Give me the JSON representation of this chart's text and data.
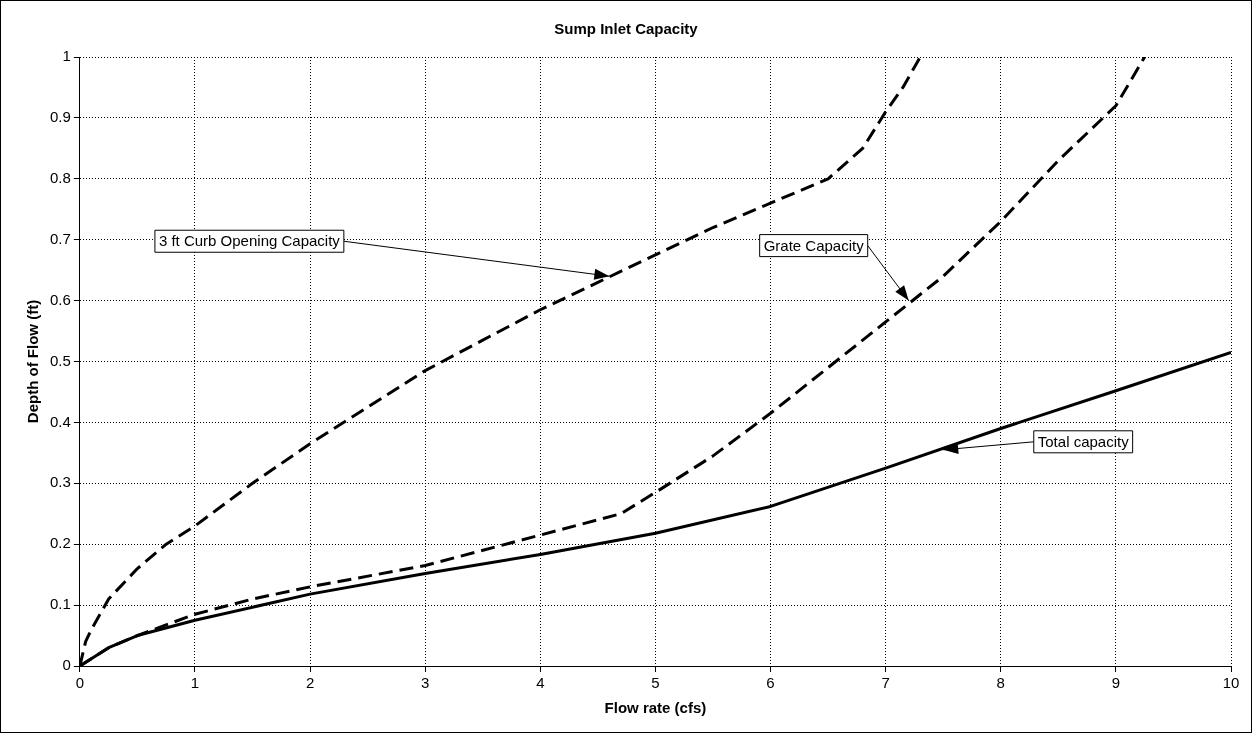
{
  "chart_data": {
    "type": "line",
    "title": "Sump Inlet Capacity",
    "xlabel": "Flow rate (cfs)",
    "ylabel": "Depth of Flow (ft)",
    "xlim": [
      0,
      10
    ],
    "xticks": [
      0,
      1,
      2,
      3,
      4,
      5,
      6,
      7,
      8,
      9,
      10
    ],
    "ylim": [
      0,
      1
    ],
    "yticks": [
      0,
      0.1,
      0.2,
      0.3,
      0.4,
      0.5,
      0.6,
      0.7,
      0.8,
      0.9,
      1
    ],
    "grid": true,
    "legend": false,
    "marker": "none",
    "series": [
      {
        "color": "#000000",
        "line_style": "dashed",
        "x": [
          0,
          0.05,
          0.1,
          0.25,
          0.5,
          0.75,
          1,
          1.5,
          2,
          2.5,
          3,
          3.5,
          4,
          4.5,
          5,
          5.5,
          6,
          6.5,
          6.8,
          7,
          7.15,
          7.3
        ],
        "values": [
          0,
          0.04,
          0.06,
          0.11,
          0.16,
          0.2,
          0.23,
          0.3,
          0.365,
          0.425,
          0.485,
          0.535,
          0.585,
          0.63,
          0.675,
          0.72,
          0.76,
          0.8,
          0.85,
          0.91,
          0.95,
          1.0
        ]
      },
      {
        "color": "#000000",
        "line_style": "dashed",
        "x": [
          0,
          0.25,
          0.5,
          1,
          1.5,
          2,
          3,
          4,
          4.7,
          5,
          5.5,
          6,
          6.5,
          7,
          7.5,
          8,
          8.5,
          9,
          9.25
        ],
        "values": [
          0,
          0.03,
          0.05,
          0.085,
          0.11,
          0.13,
          0.165,
          0.215,
          0.25,
          0.285,
          0.345,
          0.415,
          0.49,
          0.565,
          0.64,
          0.73,
          0.83,
          0.92,
          1.0
        ]
      },
      {
        "color": "#000000",
        "line_style": "solid",
        "x": [
          0,
          0.25,
          0.5,
          1,
          2,
          3,
          4,
          5,
          6,
          7,
          8,
          9,
          10
        ],
        "values": [
          0,
          0.03,
          0.05,
          0.075,
          0.118,
          0.152,
          0.183,
          0.218,
          0.262,
          0.325,
          0.39,
          0.452,
          0.515
        ]
      }
    ],
    "annotations": [
      {
        "text": "3 ft Curb Opening Capacity",
        "x": 4.6,
        "y": 0.64
      },
      {
        "text": "Grate Capacity",
        "x": 7.2,
        "y": 0.6
      },
      {
        "text": "Total capacity",
        "x": 7.5,
        "y": 0.355
      }
    ]
  }
}
